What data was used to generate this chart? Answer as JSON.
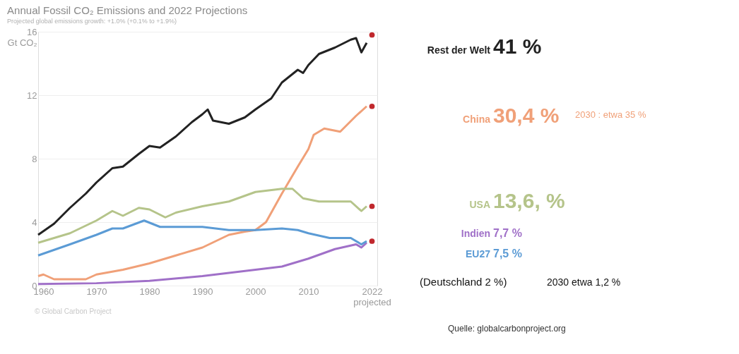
{
  "chart_data": {
    "type": "line",
    "title": "Annual Fossil CO₂ Emissions and 2022 Projections",
    "subtitle": "Projected global emissions growth: +1.0% (+0.1% to +1.9%)",
    "xlim": [
      1959,
      2023
    ],
    "xticks": [
      1960,
      1970,
      1980,
      1990,
      2000,
      2010,
      {
        "value": 2022,
        "label": "2022 projected"
      }
    ],
    "ylim": [
      0,
      16
    ],
    "yticks": [
      0,
      4,
      8,
      12,
      {
        "value": 16,
        "label": "16 Gt CO₂"
      }
    ],
    "grid": "y",
    "line_style": "solid",
    "series": [
      {
        "name": "Rest der Welt",
        "color": "#222222",
        "x": [
          1959,
          1962,
          1965,
          1968,
          1970,
          1973,
          1975,
          1978,
          1980,
          1982,
          1985,
          1988,
          1990,
          1991,
          1992,
          1995,
          1998,
          2000,
          2003,
          2005,
          2008,
          2009,
          2010,
          2012,
          2015,
          2018,
          2019,
          2020,
          2021
        ],
        "values": [
          3.2,
          3.9,
          4.9,
          5.8,
          6.5,
          7.4,
          7.5,
          8.3,
          8.8,
          8.7,
          9.4,
          10.3,
          10.8,
          11.1,
          10.4,
          10.2,
          10.6,
          11.1,
          11.8,
          12.8,
          13.6,
          13.4,
          13.9,
          14.6,
          15.0,
          15.5,
          15.6,
          14.7,
          15.3
        ]
      },
      {
        "name": "China",
        "color": "#f0a078",
        "x": [
          1959,
          1960,
          1962,
          1965,
          1968,
          1970,
          1975,
          1980,
          1985,
          1990,
          1995,
          1998,
          2000,
          2002,
          2005,
          2008,
          2010,
          2011,
          2013,
          2016,
          2019,
          2021
        ],
        "values": [
          0.6,
          0.7,
          0.4,
          0.4,
          0.4,
          0.7,
          1.0,
          1.4,
          1.9,
          2.4,
          3.2,
          3.4,
          3.5,
          4.0,
          5.8,
          7.5,
          8.6,
          9.5,
          9.9,
          9.7,
          10.7,
          11.3
        ]
      },
      {
        "name": "USA",
        "color": "#b5c48a",
        "x": [
          1959,
          1965,
          1970,
          1973,
          1975,
          1978,
          1980,
          1983,
          1985,
          1990,
          1995,
          2000,
          2005,
          2007,
          2009,
          2012,
          2015,
          2018,
          2020,
          2021
        ],
        "values": [
          2.7,
          3.3,
          4.1,
          4.7,
          4.4,
          4.9,
          4.8,
          4.3,
          4.6,
          5.0,
          5.3,
          5.9,
          6.1,
          6.1,
          5.5,
          5.3,
          5.3,
          5.3,
          4.7,
          5.0
        ]
      },
      {
        "name": "Indien",
        "color": "#a070c8",
        "x": [
          1959,
          1970,
          1980,
          1990,
          2000,
          2005,
          2010,
          2015,
          2019,
          2020,
          2021
        ],
        "values": [
          0.1,
          0.15,
          0.3,
          0.6,
          1.0,
          1.2,
          1.7,
          2.3,
          2.6,
          2.4,
          2.7
        ]
      },
      {
        "name": "EU27",
        "color": "#5b9bd5",
        "x": [
          1959,
          1965,
          1970,
          1973,
          1975,
          1979,
          1982,
          1985,
          1990,
          1995,
          2000,
          2005,
          2008,
          2010,
          2014,
          2018,
          2020,
          2021
        ],
        "values": [
          1.9,
          2.6,
          3.2,
          3.6,
          3.6,
          4.1,
          3.7,
          3.7,
          3.7,
          3.5,
          3.5,
          3.6,
          3.5,
          3.3,
          3.0,
          3.0,
          2.6,
          2.8
        ]
      },
      {
        "type": "scatter",
        "color": "#c0282d",
        "x": [
          2022,
          2022,
          2022,
          2022
        ],
        "values": [
          15.8,
          11.3,
          5.0,
          2.8
        ]
      }
    ],
    "annotations": [
      "41 %",
      "30,4 %",
      "2030 : etwa 35 %",
      "13,6, %",
      "7,7 %",
      "7,5 %",
      "(Deutschland 2 %)",
      "2030 etwa 1,2 %",
      "Quelle: globalcarbonproject.org",
      "© Global Carbon Project"
    ]
  }
}
